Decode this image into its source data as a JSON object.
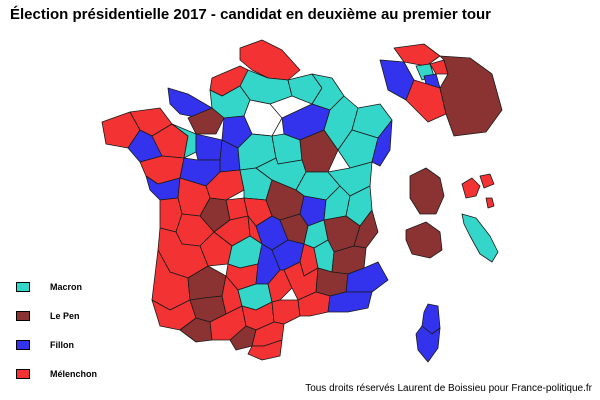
{
  "title": "Élection présidentielle 2017 - candidat en deuxième au premier tour",
  "credit": "Tous droits réservés Laurent de Boissieu pour France-politique.fr",
  "colors": {
    "macron": "#33d6c9",
    "le_pen": "#8b3333",
    "fillon": "#3333ee",
    "melenchon": "#f33333"
  },
  "legend": [
    {
      "label": "Macron",
      "key": "macron"
    },
    {
      "label": "Le Pen",
      "key": "le_pen"
    },
    {
      "label": "Fillon",
      "key": "fillon"
    },
    {
      "label": "Mélenchon",
      "key": "melenchon"
    }
  ]
}
